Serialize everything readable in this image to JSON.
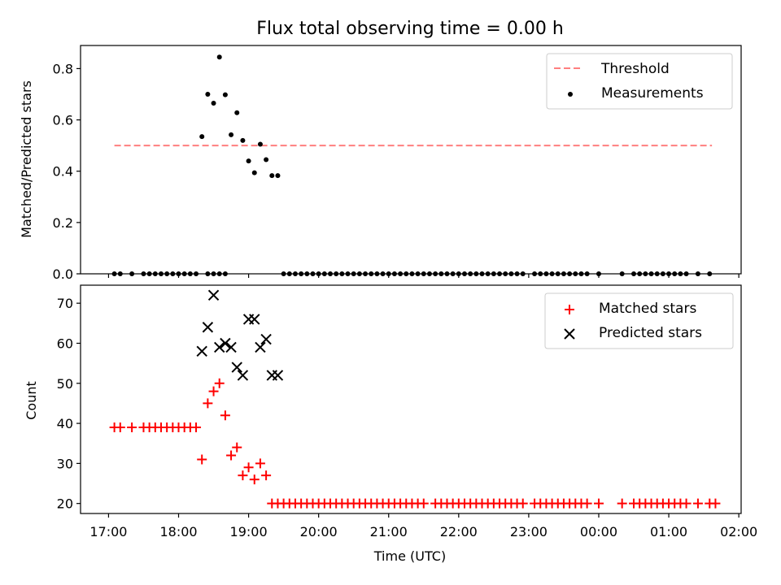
{
  "chart_data": {
    "title": "Flux total observing time = 0.00 h",
    "xlabel": "Time (UTC)",
    "x_ticks": [
      "17:00",
      "18:00",
      "19:00",
      "20:00",
      "21:00",
      "22:00",
      "23:00",
      "00:00",
      "01:00",
      "02:00"
    ],
    "xlim": [
      "16:36",
      "02:02"
    ],
    "panels": [
      {
        "type": "scatter",
        "ylabel": "Matched/Predicted stars",
        "ylim": [
          0,
          0.89
        ],
        "y_ticks": [
          0.0,
          0.2,
          0.4,
          0.6,
          0.8
        ],
        "y_tick_labels": [
          "0.0",
          "0.2",
          "0.4",
          "0.6",
          "0.8"
        ],
        "legend_position": "top-right",
        "series": [
          {
            "name": "Threshold",
            "style": "dashed-line",
            "color": "#ff7f7f",
            "points": [
              [
                "17:05",
                0.5
              ],
              [
                "01:37",
                0.5
              ]
            ]
          },
          {
            "name": "Measurements",
            "style": "dot",
            "color": "#000000",
            "points": [
              [
                "17:05",
                0.0
              ],
              [
                "17:10",
                0.0
              ],
              [
                "17:20",
                0.0
              ],
              [
                "17:30",
                0.0
              ],
              [
                "17:35",
                0.0
              ],
              [
                "17:40",
                0.0
              ],
              [
                "17:45",
                0.0
              ],
              [
                "17:50",
                0.0
              ],
              [
                "17:55",
                0.0
              ],
              [
                "18:00",
                0.0
              ],
              [
                "18:05",
                0.0
              ],
              [
                "18:10",
                0.0
              ],
              [
                "18:15",
                0.0
              ],
              [
                "18:20",
                0.535
              ],
              [
                "18:25",
                0.0
              ],
              [
                "18:30",
                0.0
              ],
              [
                "18:35",
                0.0
              ],
              [
                "18:40",
                0.0
              ],
              [
                "18:25",
                0.7
              ],
              [
                "18:30",
                0.665
              ],
              [
                "18:35",
                0.845
              ],
              [
                "18:40",
                0.698
              ],
              [
                "18:45",
                0.542
              ],
              [
                "18:50",
                0.628
              ],
              [
                "18:55",
                0.52
              ],
              [
                "19:00",
                0.44
              ],
              [
                "19:05",
                0.394
              ],
              [
                "19:10",
                0.505
              ],
              [
                "19:15",
                0.445
              ],
              [
                "19:20",
                0.383
              ],
              [
                "19:25",
                0.383
              ],
              [
                "19:30",
                0.0
              ],
              [
                "19:35",
                0.0
              ],
              [
                "19:40",
                0.0
              ],
              [
                "19:45",
                0.0
              ],
              [
                "19:50",
                0.0
              ],
              [
                "19:55",
                0.0
              ],
              [
                "20:00",
                0.0
              ],
              [
                "20:05",
                0.0
              ],
              [
                "20:10",
                0.0
              ],
              [
                "20:15",
                0.0
              ],
              [
                "20:20",
                0.0
              ],
              [
                "20:25",
                0.0
              ],
              [
                "20:30",
                0.0
              ],
              [
                "20:35",
                0.0
              ],
              [
                "20:40",
                0.0
              ],
              [
                "20:45",
                0.0
              ],
              [
                "20:50",
                0.0
              ],
              [
                "20:55",
                0.0
              ],
              [
                "21:00",
                0.0
              ],
              [
                "21:05",
                0.0
              ],
              [
                "21:10",
                0.0
              ],
              [
                "21:15",
                0.0
              ],
              [
                "21:20",
                0.0
              ],
              [
                "21:25",
                0.0
              ],
              [
                "21:30",
                0.0
              ],
              [
                "21:35",
                0.0
              ],
              [
                "21:40",
                0.0
              ],
              [
                "21:45",
                0.0
              ],
              [
                "21:50",
                0.0
              ],
              [
                "21:55",
                0.0
              ],
              [
                "22:00",
                0.0
              ],
              [
                "22:05",
                0.0
              ],
              [
                "22:10",
                0.0
              ],
              [
                "22:15",
                0.0
              ],
              [
                "22:20",
                0.0
              ],
              [
                "22:25",
                0.0
              ],
              [
                "22:30",
                0.0
              ],
              [
                "22:35",
                0.0
              ],
              [
                "22:40",
                0.0
              ],
              [
                "22:45",
                0.0
              ],
              [
                "22:50",
                0.0
              ],
              [
                "22:55",
                0.0
              ],
              [
                "23:05",
                0.0
              ],
              [
                "23:10",
                0.0
              ],
              [
                "23:15",
                0.0
              ],
              [
                "23:20",
                0.0
              ],
              [
                "23:25",
                0.0
              ],
              [
                "23:30",
                0.0
              ],
              [
                "23:35",
                0.0
              ],
              [
                "23:40",
                0.0
              ],
              [
                "23:45",
                0.0
              ],
              [
                "23:50",
                0.0
              ],
              [
                "00:00",
                0.0
              ],
              [
                "00:20",
                0.0
              ],
              [
                "00:30",
                0.0
              ],
              [
                "00:35",
                0.0
              ],
              [
                "00:40",
                0.0
              ],
              [
                "00:45",
                0.0
              ],
              [
                "00:50",
                0.0
              ],
              [
                "00:55",
                0.0
              ],
              [
                "01:00",
                0.0
              ],
              [
                "01:05",
                0.0
              ],
              [
                "01:10",
                0.0
              ],
              [
                "01:15",
                0.0
              ],
              [
                "01:25",
                0.0
              ],
              [
                "01:35",
                0.0
              ]
            ]
          }
        ]
      },
      {
        "type": "scatter",
        "ylabel": "Count",
        "ylim": [
          17.5,
          74.5
        ],
        "y_ticks": [
          20,
          30,
          40,
          50,
          60,
          70
        ],
        "y_tick_labels": [
          "20",
          "30",
          "40",
          "50",
          "60",
          "70"
        ],
        "legend_position": "top-right",
        "series": [
          {
            "name": "Matched stars",
            "style": "plus",
            "color": "#ff0000",
            "points": [
              [
                "17:05",
                39
              ],
              [
                "17:10",
                39
              ],
              [
                "17:20",
                39
              ],
              [
                "17:30",
                39
              ],
              [
                "17:35",
                39
              ],
              [
                "17:40",
                39
              ],
              [
                "17:45",
                39
              ],
              [
                "17:50",
                39
              ],
              [
                "17:55",
                39
              ],
              [
                "18:00",
                39
              ],
              [
                "18:05",
                39
              ],
              [
                "18:10",
                39
              ],
              [
                "18:15",
                39
              ],
              [
                "18:20",
                31
              ],
              [
                "18:25",
                45
              ],
              [
                "18:30",
                48
              ],
              [
                "18:35",
                50
              ],
              [
                "18:40",
                42
              ],
              [
                "18:45",
                32
              ],
              [
                "18:50",
                34
              ],
              [
                "18:55",
                27
              ],
              [
                "19:00",
                29
              ],
              [
                "19:05",
                26
              ],
              [
                "19:10",
                30
              ],
              [
                "19:15",
                27
              ],
              [
                "19:20",
                20
              ],
              [
                "19:25",
                20
              ],
              [
                "19:30",
                20
              ],
              [
                "19:35",
                20
              ],
              [
                "19:40",
                20
              ],
              [
                "19:45",
                20
              ],
              [
                "19:50",
                20
              ],
              [
                "19:55",
                20
              ],
              [
                "20:00",
                20
              ],
              [
                "20:05",
                20
              ],
              [
                "20:10",
                20
              ],
              [
                "20:15",
                20
              ],
              [
                "20:20",
                20
              ],
              [
                "20:25",
                20
              ],
              [
                "20:30",
                20
              ],
              [
                "20:35",
                20
              ],
              [
                "20:40",
                20
              ],
              [
                "20:45",
                20
              ],
              [
                "20:50",
                20
              ],
              [
                "20:55",
                20
              ],
              [
                "21:00",
                20
              ],
              [
                "21:05",
                20
              ],
              [
                "21:10",
                20
              ],
              [
                "21:15",
                20
              ],
              [
                "21:20",
                20
              ],
              [
                "21:25",
                20
              ],
              [
                "21:30",
                20
              ],
              [
                "21:40",
                20
              ],
              [
                "21:45",
                20
              ],
              [
                "21:50",
                20
              ],
              [
                "21:55",
                20
              ],
              [
                "22:00",
                20
              ],
              [
                "22:05",
                20
              ],
              [
                "22:10",
                20
              ],
              [
                "22:15",
                20
              ],
              [
                "22:20",
                20
              ],
              [
                "22:25",
                20
              ],
              [
                "22:30",
                20
              ],
              [
                "22:35",
                20
              ],
              [
                "22:40",
                20
              ],
              [
                "22:45",
                20
              ],
              [
                "22:50",
                20
              ],
              [
                "22:55",
                20
              ],
              [
                "23:05",
                20
              ],
              [
                "23:10",
                20
              ],
              [
                "23:15",
                20
              ],
              [
                "23:20",
                20
              ],
              [
                "23:25",
                20
              ],
              [
                "23:30",
                20
              ],
              [
                "23:35",
                20
              ],
              [
                "23:40",
                20
              ],
              [
                "23:45",
                20
              ],
              [
                "23:50",
                20
              ],
              [
                "00:00",
                20
              ],
              [
                "00:20",
                20
              ],
              [
                "00:30",
                20
              ],
              [
                "00:35",
                20
              ],
              [
                "00:40",
                20
              ],
              [
                "00:45",
                20
              ],
              [
                "00:50",
                20
              ],
              [
                "00:55",
                20
              ],
              [
                "01:00",
                20
              ],
              [
                "01:05",
                20
              ],
              [
                "01:10",
                20
              ],
              [
                "01:15",
                20
              ],
              [
                "01:25",
                20
              ],
              [
                "01:35",
                20
              ],
              [
                "01:40",
                20
              ]
            ]
          },
          {
            "name": "Predicted stars",
            "style": "x",
            "color": "#000000",
            "points": [
              [
                "18:20",
                58
              ],
              [
                "18:25",
                64
              ],
              [
                "18:30",
                72
              ],
              [
                "18:35",
                59
              ],
              [
                "18:40",
                60
              ],
              [
                "18:45",
                59
              ],
              [
                "18:50",
                54
              ],
              [
                "18:55",
                52
              ],
              [
                "19:00",
                66
              ],
              [
                "19:05",
                66
              ],
              [
                "19:10",
                59
              ],
              [
                "19:15",
                61
              ],
              [
                "19:20",
                52
              ],
              [
                "19:25",
                52
              ]
            ]
          }
        ]
      }
    ]
  }
}
